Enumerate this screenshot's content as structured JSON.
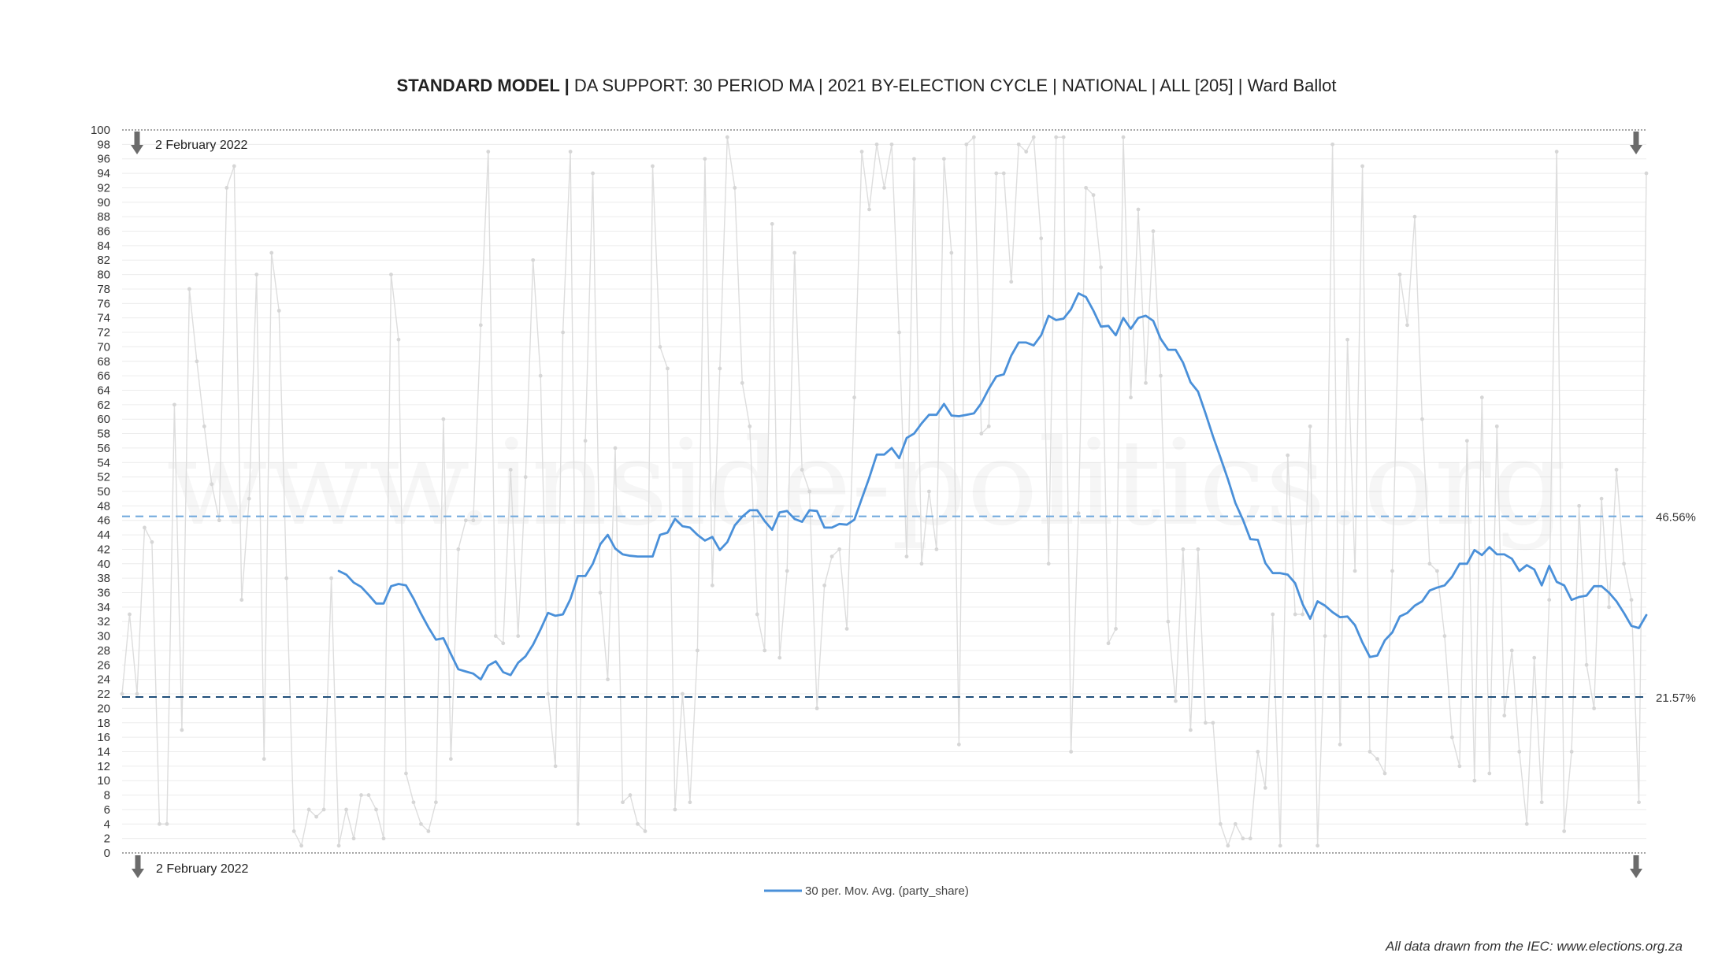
{
  "chart_data": {
    "type": "line",
    "title_bold": "STANDARD MODEL |",
    "title_rest": " DA SUPPORT: 30 PERIOD MA | 2021 BY-ELECTION CYCLE | NATIONAL | ALL [205] | Ward Ballot",
    "ylim": [
      0,
      100
    ],
    "ytick_step": 2,
    "date_marker_label": "2 February 2022",
    "legend_label": "30 per. Mov. Avg. (party_share)",
    "source_note": "All data drawn from the IEC: www.elections.org.za",
    "reference_lines": [
      {
        "value": 46.56,
        "label": "46.56%",
        "color": "#6fa8dc"
      },
      {
        "value": 21.57,
        "label": "21.57%",
        "color": "#1f4e79"
      }
    ],
    "watermark": "www.inside-politics.org",
    "series": [
      {
        "color": "#dddddd",
        "x": [
          1,
          2,
          3,
          4,
          5,
          6,
          7,
          8,
          9,
          10,
          11,
          12,
          13,
          14,
          15,
          16,
          17,
          18,
          19,
          20,
          21,
          22,
          23,
          24,
          25,
          26,
          27,
          28,
          29,
          30,
          31,
          32,
          33,
          34,
          35,
          36,
          37,
          38,
          39,
          40,
          41,
          42,
          43,
          44,
          45,
          46,
          47,
          48,
          49,
          50,
          51,
          52,
          53,
          54,
          55,
          56,
          57,
          58,
          59,
          60,
          61,
          62,
          63,
          64,
          65,
          66,
          67,
          68,
          69,
          70,
          71,
          72,
          73,
          74,
          75,
          76,
          77,
          78,
          79,
          80,
          81,
          82,
          83,
          84,
          85,
          86,
          87,
          88,
          89,
          90,
          91,
          92,
          93,
          94,
          95,
          96,
          97,
          98,
          99,
          100,
          101,
          102,
          103,
          104,
          105,
          106,
          107,
          108,
          109,
          110,
          111,
          112,
          113,
          114,
          115,
          116,
          117,
          118,
          119,
          120,
          121,
          122,
          123,
          124,
          125,
          126,
          127,
          128,
          129,
          130,
          131,
          132,
          133,
          134,
          135,
          136,
          137,
          138,
          139,
          140,
          141,
          142,
          143,
          144,
          145,
          146,
          147,
          148,
          149,
          150,
          151,
          152,
          153,
          154,
          155,
          156,
          157,
          158,
          159,
          160,
          161,
          162,
          163,
          164,
          165,
          166,
          167,
          168,
          169,
          170,
          171,
          172,
          173,
          174,
          175,
          176,
          177,
          178,
          179,
          180,
          181,
          182,
          183,
          184,
          185,
          186,
          187,
          188,
          189,
          190,
          191,
          192,
          193,
          194,
          195,
          196,
          197,
          198,
          199,
          200,
          201,
          202,
          203,
          204,
          205
        ],
        "values": [
          22,
          33,
          22,
          45,
          43,
          4,
          4,
          62,
          17,
          78,
          68,
          59,
          51,
          46,
          92,
          95,
          35,
          49,
          80,
          13,
          83,
          75,
          38,
          3,
          1,
          6,
          5,
          6,
          38,
          1,
          6,
          2,
          8,
          8,
          6,
          2,
          80,
          71,
          11,
          7,
          4,
          3,
          7,
          60,
          13,
          42,
          46,
          46,
          73,
          97,
          30,
          29,
          53,
          30,
          52,
          82,
          66,
          22,
          12,
          72,
          97,
          4,
          57,
          94,
          36,
          24,
          56,
          7,
          8,
          4,
          3,
          95,
          70,
          67,
          6,
          22,
          7,
          28,
          96,
          37,
          67,
          99,
          92,
          65,
          59,
          33,
          28,
          87,
          27,
          39,
          83,
          53,
          50,
          20,
          37,
          41,
          42,
          31,
          63,
          97,
          89,
          98,
          92,
          98,
          72,
          41,
          96,
          40,
          50,
          42,
          96,
          83,
          15,
          98,
          99,
          58,
          59,
          94,
          94,
          79,
          98,
          97,
          99,
          85,
          40,
          99,
          99,
          14,
          47,
          92,
          91,
          81,
          29,
          31,
          99,
          63,
          89,
          65,
          86,
          66,
          32,
          21,
          42,
          17,
          42,
          18,
          18,
          4,
          1,
          4,
          2,
          2,
          14,
          9,
          33,
          1,
          55,
          33,
          33,
          59,
          1,
          30,
          98,
          15,
          71,
          39,
          95,
          14,
          13,
          11,
          39,
          80,
          73,
          88,
          60,
          40,
          39,
          30,
          16,
          12,
          57,
          10,
          63,
          11,
          59,
          19,
          28,
          14,
          4,
          27,
          7,
          35,
          97,
          3,
          14,
          48,
          26,
          20,
          49,
          34,
          53,
          40,
          35,
          7,
          94
        ]
      },
      {
        "name": "30 per. Mov. Avg. (party_share)",
        "color": "#4a90d9",
        "x": [
          30,
          31,
          32,
          33,
          34,
          35,
          36,
          37,
          38,
          39,
          40,
          41,
          42,
          43,
          44,
          45,
          46,
          47,
          48,
          49,
          50,
          51,
          52,
          53,
          54,
          55,
          56,
          57,
          58,
          59,
          60,
          61,
          62,
          63,
          64,
          65,
          66,
          67,
          68,
          69,
          70,
          71,
          72,
          73,
          74,
          75,
          76,
          77,
          78,
          79,
          80,
          81,
          82,
          83,
          84,
          85,
          86,
          87,
          88,
          89,
          90,
          91,
          92,
          93,
          94,
          95,
          96,
          97,
          98,
          99,
          100,
          101,
          102,
          103,
          104,
          105,
          106,
          107,
          108,
          109,
          110,
          111,
          112,
          113,
          114,
          115,
          116,
          117,
          118,
          119,
          120,
          121,
          122,
          123,
          124,
          125,
          126,
          127,
          128,
          129,
          130,
          131,
          132,
          133,
          134,
          135,
          136,
          137,
          138,
          139,
          140,
          141,
          142,
          143,
          144,
          145,
          146,
          147,
          148,
          149,
          150,
          151,
          152,
          153,
          154,
          155,
          156,
          157,
          158,
          159,
          160,
          161,
          162,
          163,
          164,
          165,
          166,
          167,
          168,
          169,
          170,
          171,
          172,
          173,
          174,
          175,
          176,
          177,
          178,
          179,
          180,
          181,
          182,
          183,
          184,
          185,
          186,
          187,
          188,
          189,
          190,
          191,
          192,
          193,
          194,
          195,
          196,
          197,
          198,
          199,
          200,
          201,
          202,
          203,
          204,
          205
        ],
        "values": [
          39.0,
          38.5,
          37.4,
          36.8,
          35.7,
          34.5,
          34.5,
          36.9,
          37.2,
          37.0,
          35.2,
          33.1,
          31.2,
          29.5,
          29.7,
          27.5,
          25.4,
          25.1,
          24.8,
          24.0,
          25.9,
          26.5,
          25.0,
          24.6,
          26.3,
          27.2,
          28.8,
          30.9,
          33.2,
          32.8,
          33.0,
          35.1,
          38.3,
          38.3,
          40.0,
          42.7,
          44.0,
          42.1,
          41.3,
          41.1,
          41.0,
          41.0,
          41.0,
          44.0,
          44.3,
          46.2,
          45.2,
          45.0,
          44.0,
          43.2,
          43.7,
          41.9,
          43.0,
          45.3,
          46.5,
          47.4,
          47.4,
          45.9,
          44.7,
          47.1,
          47.3,
          46.2,
          45.8,
          47.4,
          47.3,
          45.0,
          45.0,
          45.5,
          45.4,
          46.1,
          49.0,
          51.9,
          55.1,
          55.1,
          56.0,
          54.6,
          57.4,
          58.0,
          59.4,
          60.6,
          60.6,
          62.1,
          60.5,
          60.4,
          60.6,
          60.8,
          62.2,
          64.2,
          65.9,
          66.2,
          68.8,
          70.6,
          70.6,
          70.2,
          71.6,
          74.3,
          73.7,
          73.9,
          75.2,
          77.4,
          76.9,
          75.0,
          72.8,
          72.9,
          71.6,
          74.0,
          72.5,
          74.0,
          74.3,
          73.6,
          71.1,
          69.6,
          69.6,
          67.8,
          65.1,
          63.8,
          60.8,
          57.6,
          54.7,
          51.7,
          48.4,
          46.1,
          43.4,
          43.3,
          40.1,
          38.7,
          38.7,
          38.5,
          37.3,
          34.4,
          32.4,
          34.8,
          34.2,
          33.3,
          32.6,
          32.7,
          31.5,
          29.1,
          27.1,
          27.3,
          29.4,
          30.5,
          32.7,
          33.2,
          34.2,
          34.8,
          36.3,
          36.7,
          37.0,
          38.2,
          40.0,
          40.0,
          41.9,
          41.2,
          42.3,
          41.3,
          41.3,
          40.7,
          39.0,
          39.8,
          39.2,
          37.0,
          39.7,
          37.5,
          37.0,
          35.0,
          35.4,
          35.6,
          36.9,
          36.9,
          36.0,
          34.8,
          33.2,
          31.4,
          31.1,
          32.9
        ]
      }
    ]
  }
}
